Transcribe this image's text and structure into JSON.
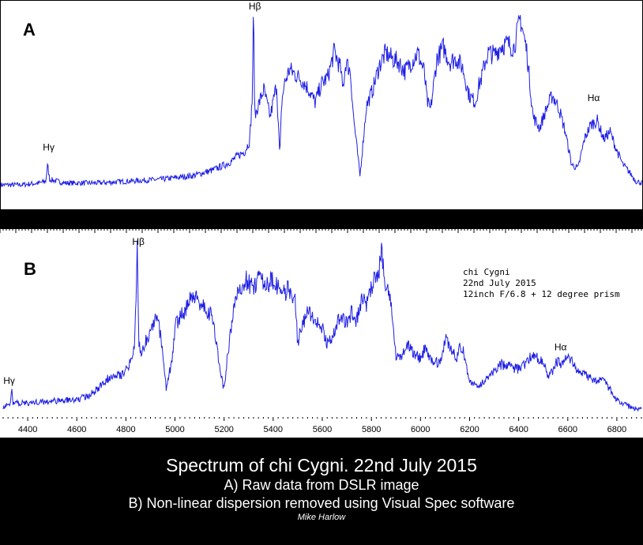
{
  "chart_data": [
    {
      "type": "line",
      "panel_label": "A",
      "title": "",
      "xlabel": "",
      "ylabel": "",
      "line_color": "#1e1ee6",
      "grid": false,
      "xlim": [
        0,
        100
      ],
      "ylim": [
        0,
        100
      ],
      "annotations": [
        {
          "text": "Hγ",
          "x": 7.3,
          "y": 20
        },
        {
          "text": "Hβ",
          "x": 39.4,
          "y": 97
        },
        {
          "text": "Hα",
          "x": 92.2,
          "y": 47
        }
      ],
      "series": [
        {
          "x": [
            0,
            3,
            6,
            7.0,
            7.3,
            7.6,
            10,
            15,
            20,
            25,
            30,
            33,
            35,
            36,
            37,
            38,
            38.8,
            39.2,
            39.4,
            39.6,
            40,
            41,
            42,
            43,
            43.5,
            43.8,
            44.2,
            45,
            46,
            47,
            48,
            49,
            50,
            51,
            52,
            53,
            53.3,
            53.8,
            54.5,
            55,
            56,
            57,
            58,
            59,
            60,
            61,
            62,
            63,
            64,
            65,
            66,
            66.5,
            67,
            68,
            69,
            70,
            71,
            72,
            73,
            74,
            74.5,
            75,
            75.5,
            76,
            77,
            78,
            79,
            80,
            81,
            82,
            83,
            84,
            85,
            86,
            87,
            88,
            89,
            90,
            91,
            92,
            93,
            94,
            95,
            96,
            97,
            98,
            99,
            100
          ],
          "y": [
            3,
            3,
            4,
            5,
            14,
            6,
            4,
            4,
            5,
            6,
            8,
            11,
            14,
            16,
            19,
            21,
            27,
            50,
            98,
            40,
            45,
            55,
            40,
            58,
            18,
            48,
            58,
            66,
            63,
            60,
            55,
            48,
            58,
            62,
            76,
            66,
            55,
            70,
            65,
            40,
            8,
            46,
            55,
            68,
            75,
            72,
            70,
            65,
            70,
            75,
            65,
            48,
            44,
            72,
            78,
            70,
            72,
            67,
            52,
            48,
            57,
            62,
            70,
            75,
            74,
            79,
            80,
            78,
            94,
            76,
            40,
            34,
            44,
            52,
            45,
            32,
            14,
            12,
            28,
            36,
            38,
            28,
            32,
            22,
            14,
            10,
            5,
            4
          ]
        }
      ]
    },
    {
      "type": "line",
      "panel_label": "B",
      "title": "",
      "xlabel": "",
      "ylabel": "",
      "line_color": "#1e1ee6",
      "grid": false,
      "xlim": [
        4300,
        6900
      ],
      "ylim": [
        0,
        100
      ],
      "x_ticks": [
        4400,
        4600,
        4800,
        5000,
        5200,
        5400,
        5600,
        5800,
        6000,
        6200,
        6400,
        6600,
        6800
      ],
      "annotations": [
        {
          "text": "Hγ",
          "x": 4320,
          "y": 17
        },
        {
          "text": "Hβ",
          "x": 4845,
          "y": 96
        },
        {
          "text": "Hα",
          "x": 6565,
          "y": 36
        }
      ],
      "legend_text": [
        "chi Cygni",
        "22nd July 2015",
        "12inch F/6.8 + 12 degree prism"
      ],
      "legend_placement": "top-right",
      "series": [
        {
          "x": [
            4300,
            4330,
            4334,
            4340,
            4400,
            4500,
            4600,
            4650,
            4700,
            4750,
            4780,
            4800,
            4820,
            4835,
            4840,
            4846,
            4852,
            4860,
            4900,
            4930,
            4950,
            4965,
            4990,
            5000,
            5040,
            5060,
            5080,
            5100,
            5150,
            5175,
            5200,
            5210,
            5230,
            5250,
            5290,
            5320,
            5340,
            5380,
            5400,
            5430,
            5460,
            5490,
            5500,
            5510,
            5540,
            5580,
            5600,
            5620,
            5650,
            5670,
            5700,
            5720,
            5740,
            5760,
            5780,
            5800,
            5830,
            5840,
            5850,
            5860,
            5880,
            5900,
            5920,
            5950,
            6000,
            6020,
            6050,
            6080,
            6100,
            6130,
            6150,
            6160,
            6180,
            6200,
            6230,
            6260,
            6300,
            6330,
            6350,
            6380,
            6400,
            6430,
            6450,
            6480,
            6500,
            6520,
            6540,
            6555,
            6570,
            6600,
            6650,
            6700,
            6750,
            6800,
            6850,
            6900
          ],
          "y": [
            6,
            7,
            18,
            8,
            8,
            9,
            10,
            12,
            18,
            25,
            24,
            27,
            32,
            40,
            60,
            96,
            45,
            35,
            50,
            58,
            35,
            15,
            35,
            52,
            60,
            68,
            68,
            65,
            58,
            35,
            15,
            30,
            52,
            70,
            78,
            73,
            80,
            76,
            78,
            70,
            72,
            68,
            40,
            48,
            60,
            54,
            50,
            42,
            48,
            57,
            53,
            60,
            54,
            68,
            64,
            75,
            80,
            96,
            82,
            74,
            64,
            34,
            35,
            40,
            33,
            40,
            30,
            32,
            44,
            38,
            33,
            42,
            35,
            20,
            17,
            20,
            26,
            30,
            29,
            28,
            27,
            30,
            35,
            33,
            31,
            24,
            26,
            32,
            30,
            34,
            25,
            22,
            20,
            10,
            6,
            4
          ]
        }
      ]
    }
  ],
  "captions": {
    "title": "Spectrum of chi Cygni.  22nd July 2015",
    "line_a": "A) Raw data from DSLR image",
    "line_b": "B) Non-linear dispersion removed using Visual Spec software",
    "author": "Mike Harlow"
  }
}
